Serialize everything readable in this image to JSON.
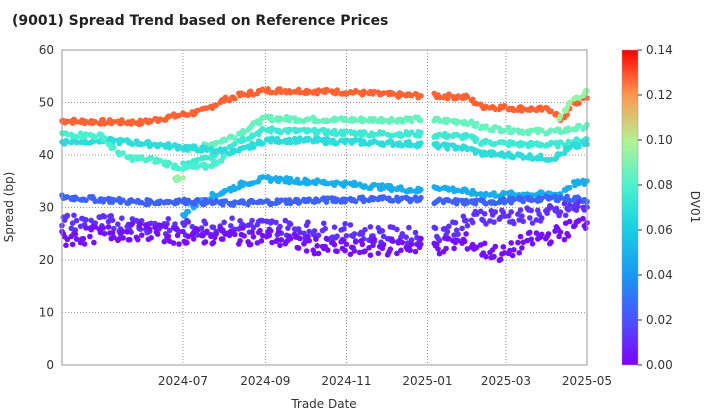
{
  "chart_data": {
    "type": "scatter",
    "title": "(9001)   Spread Trend based on Reference Prices",
    "xlabel": "Trade Date",
    "ylabel": "Spread (bp)",
    "colorbar_label": "DV01",
    "x_range": [
      "2024-04-01",
      "2025-05-01"
    ],
    "ylim": [
      0,
      60
    ],
    "y_ticks": [
      0,
      10,
      20,
      30,
      40,
      50,
      60
    ],
    "x_ticks": [
      "2024-07-01",
      "2024-09-01",
      "2024-11-01",
      "2025-01-01",
      "2025-03-01",
      "2025-05-01"
    ],
    "x_tick_labels": [
      "2024-07",
      "2024-09",
      "2024-11",
      "2025-01",
      "2025-03",
      "2025-05"
    ],
    "colorbar_range": [
      0.0,
      0.14
    ],
    "colorbar_ticks": [
      "0.00",
      "0.02",
      "0.04",
      "0.06",
      "0.08",
      "0.10",
      "0.12",
      "0.14"
    ],
    "colormap": "rainbow",
    "grid": true,
    "series": [
      {
        "dv01": 0.127,
        "points": [
          [
            "2024-04-01",
            46.5
          ],
          [
            "2024-05-01",
            46.3
          ],
          [
            "2024-06-01",
            46.2
          ],
          [
            "2024-06-20",
            47.2
          ],
          [
            "2024-07-15",
            48.3
          ],
          [
            "2024-08-01",
            50.5
          ],
          [
            "2024-08-15",
            51.5
          ],
          [
            "2024-09-01",
            52.3
          ],
          [
            "2024-10-01",
            52.2
          ],
          [
            "2024-11-01",
            52.0
          ],
          [
            "2024-12-01",
            51.5
          ],
          [
            "2024-12-28",
            51.3
          ],
          [
            "2025-01-06",
            51.3
          ],
          [
            "2025-01-31",
            51.0
          ],
          [
            "2025-02-10",
            49.3
          ],
          [
            "2025-03-15",
            48.8
          ],
          [
            "2025-04-05",
            48.6
          ],
          [
            "2025-04-12",
            46.5
          ],
          [
            "2025-04-20",
            49.5
          ],
          [
            "2025-05-01",
            51.0
          ]
        ]
      },
      {
        "dv01": 0.095,
        "points": [
          [
            "2025-04-10",
            47.0
          ],
          [
            "2025-04-20",
            50.5
          ],
          [
            "2025-05-01",
            52.0
          ]
        ]
      },
      {
        "dv01": 0.085,
        "points": [
          [
            "2024-07-01",
            41.0
          ],
          [
            "2024-07-20",
            41.8
          ],
          [
            "2024-08-10",
            43.8
          ],
          [
            "2024-09-01",
            47.0
          ],
          [
            "2024-10-01",
            46.8
          ],
          [
            "2024-11-01",
            46.7
          ],
          [
            "2024-12-01",
            46.7
          ],
          [
            "2024-12-28",
            46.8
          ],
          [
            "2025-01-06",
            46.6
          ],
          [
            "2025-01-31",
            46.3
          ],
          [
            "2025-02-10",
            45.3
          ],
          [
            "2025-03-15",
            44.5
          ],
          [
            "2025-04-10",
            44.5
          ],
          [
            "2025-05-01",
            45.5
          ]
        ]
      },
      {
        "dv01": 0.075,
        "points": [
          [
            "2024-07-01",
            38.0
          ],
          [
            "2024-07-20",
            39.5
          ],
          [
            "2024-08-10",
            42.5
          ],
          [
            "2024-09-01",
            44.8
          ],
          [
            "2024-10-01",
            44.5
          ],
          [
            "2024-11-01",
            44.2
          ],
          [
            "2024-12-01",
            44.0
          ],
          [
            "2024-12-28",
            44.0
          ],
          [
            "2025-01-06",
            43.8
          ],
          [
            "2025-01-31",
            43.5
          ],
          [
            "2025-02-10",
            42.5
          ],
          [
            "2025-03-15",
            42.0
          ],
          [
            "2025-04-10",
            42.0
          ],
          [
            "2025-05-01",
            43.0
          ]
        ]
      },
      {
        "dv01": 0.068,
        "points": [
          [
            "2024-04-01",
            42.5
          ],
          [
            "2024-05-01",
            42.8
          ],
          [
            "2024-05-20",
            42.5
          ],
          [
            "2024-08-10",
            40.5
          ],
          [
            "2024-09-01",
            42.8
          ],
          [
            "2024-10-01",
            42.8
          ],
          [
            "2024-11-01",
            42.5
          ],
          [
            "2024-12-01",
            42.3
          ],
          [
            "2024-12-28",
            42.0
          ],
          [
            "2025-01-06",
            41.8
          ],
          [
            "2025-01-31",
            41.3
          ],
          [
            "2025-02-10",
            40.3
          ],
          [
            "2025-03-15",
            39.8
          ],
          [
            "2025-04-05",
            39.3
          ],
          [
            "2025-04-20",
            41.5
          ],
          [
            "2025-05-01",
            42.2
          ]
        ]
      },
      {
        "dv01": 0.079,
        "points": [
          [
            "2024-04-01",
            44.0
          ],
          [
            "2024-05-01",
            43.6
          ],
          [
            "2024-05-10",
            41.0
          ],
          [
            "2024-05-20",
            39.5
          ],
          [
            "2024-06-10",
            39.0
          ],
          [
            "2024-07-01",
            37.5
          ],
          [
            "2024-07-20",
            37.8
          ],
          [
            "2024-08-01",
            39.5
          ]
        ]
      },
      {
        "dv01": 0.094,
        "points": [
          [
            "2024-06-25",
            35.6
          ],
          [
            "2024-07-01",
            35.4
          ]
        ]
      },
      {
        "dv01": 0.048,
        "points": [
          [
            "2024-07-01",
            28.5
          ],
          [
            "2024-07-15",
            31.5
          ],
          [
            "2024-08-01",
            33.0
          ],
          [
            "2024-08-15",
            34.5
          ],
          [
            "2024-09-01",
            35.5
          ],
          [
            "2024-10-01",
            35.0
          ],
          [
            "2024-11-01",
            34.5
          ],
          [
            "2024-12-01",
            33.8
          ],
          [
            "2024-12-28",
            33.2
          ],
          [
            "2025-01-06",
            34.0
          ],
          [
            "2025-01-31",
            33.0
          ],
          [
            "2025-02-10",
            32.5
          ],
          [
            "2025-03-15",
            32.5
          ],
          [
            "2025-04-10",
            32.5
          ],
          [
            "2025-04-20",
            34.5
          ],
          [
            "2025-05-01",
            34.8
          ]
        ]
      },
      {
        "dv01": 0.025,
        "points": [
          [
            "2024-04-01",
            32.0
          ],
          [
            "2024-05-01",
            31.5
          ],
          [
            "2024-06-01",
            31.0
          ],
          [
            "2024-07-01",
            31.2
          ],
          [
            "2024-08-01",
            30.8
          ],
          [
            "2024-09-01",
            31.0
          ],
          [
            "2024-10-01",
            31.3
          ],
          [
            "2024-11-01",
            31.5
          ],
          [
            "2024-12-01",
            31.7
          ],
          [
            "2024-12-28",
            31.5
          ],
          [
            "2025-01-06",
            31.2
          ],
          [
            "2025-01-31",
            31.0
          ],
          [
            "2025-02-10",
            31.0
          ],
          [
            "2025-03-15",
            31.5
          ],
          [
            "2025-04-10",
            31.8
          ],
          [
            "2025-05-01",
            31.5
          ]
        ]
      },
      {
        "dv01": 0.012,
        "points": [
          [
            "2024-04-01",
            27.2
          ],
          [
            "2024-05-01",
            27.0
          ],
          [
            "2024-06-01",
            26.8
          ],
          [
            "2024-07-01",
            26.0
          ],
          [
            "2024-08-01",
            26.5
          ],
          [
            "2024-09-01",
            26.5
          ],
          [
            "2024-10-01",
            25.8
          ],
          [
            "2024-11-01",
            25.3
          ],
          [
            "2024-12-01",
            24.8
          ],
          [
            "2024-12-28",
            24.5
          ],
          [
            "2025-01-06",
            25.0
          ],
          [
            "2025-01-31",
            27.0
          ],
          [
            "2025-02-10",
            28.5
          ],
          [
            "2025-03-15",
            28.3
          ],
          [
            "2025-04-10",
            29.0
          ],
          [
            "2025-05-01",
            30.5
          ]
        ]
      },
      {
        "dv01": 0.004,
        "points": [
          [
            "2024-04-01",
            24.0
          ],
          [
            "2024-05-01",
            25.0
          ],
          [
            "2024-06-01",
            25.5
          ],
          [
            "2024-07-01",
            24.5
          ],
          [
            "2024-08-01",
            24.5
          ],
          [
            "2024-09-01",
            24.5
          ],
          [
            "2024-10-01",
            23.0
          ],
          [
            "2024-11-01",
            22.0
          ],
          [
            "2024-12-01",
            22.5
          ],
          [
            "2024-12-28",
            22.8
          ],
          [
            "2025-01-06",
            22.5
          ],
          [
            "2025-01-31",
            23.5
          ],
          [
            "2025-02-10",
            22.0
          ],
          [
            "2025-03-01",
            21.0
          ],
          [
            "2025-03-15",
            23.5
          ],
          [
            "2025-04-10",
            25.0
          ],
          [
            "2025-05-01",
            27.5
          ]
        ]
      }
    ]
  }
}
